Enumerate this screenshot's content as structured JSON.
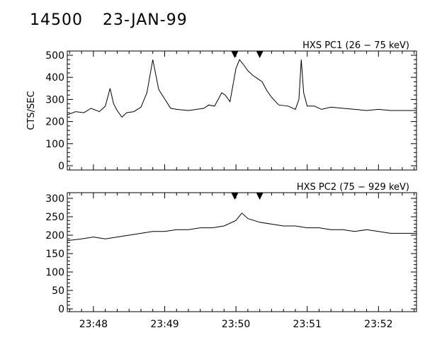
{
  "header": {
    "event_id": "14500",
    "date": "23-JAN-99"
  },
  "chart_data": [
    {
      "type": "line",
      "title": "HXS PC1 (26 − 75 keV)",
      "ylabel": "CTS/SEC",
      "ylim": [
        0,
        500
      ],
      "yticks": [
        0,
        100,
        200,
        300,
        400,
        500
      ],
      "xlim": [
        "23:47:38",
        "23:52:32"
      ],
      "xticks": [
        "23:48",
        "23:49",
        "23:50",
        "23:51",
        "23:52"
      ],
      "markers": [
        "23:49:59",
        "23:50:20"
      ],
      "series": [
        {
          "x": [
            "23:47:38",
            "23:47:45",
            "23:47:52",
            "23:47:58",
            "23:48:05",
            "23:48:10",
            "23:48:14",
            "23:48:17",
            "23:48:20",
            "23:48:24",
            "23:48:28",
            "23:48:34",
            "23:48:40",
            "23:48:45",
            "23:48:50",
            "23:48:55",
            "23:49:05",
            "23:49:10",
            "23:49:20",
            "23:49:27",
            "23:49:33",
            "23:49:37",
            "23:49:42",
            "23:49:45",
            "23:49:48",
            "23:49:51",
            "23:49:55",
            "23:50:00",
            "23:50:03",
            "23:50:06",
            "23:50:10",
            "23:50:14",
            "23:50:18",
            "23:50:22",
            "23:50:26",
            "23:50:30",
            "23:50:36",
            "23:50:44",
            "23:50:50",
            "23:50:53",
            "23:50:55",
            "23:50:57",
            "23:51:00",
            "23:51:06",
            "23:51:12",
            "23:51:20",
            "23:51:30",
            "23:51:40",
            "23:51:50",
            "23:52:00",
            "23:52:10",
            "23:52:20",
            "23:52:32"
          ],
          "values": [
            230,
            245,
            240,
            260,
            245,
            270,
            350,
            280,
            250,
            220,
            240,
            245,
            265,
            330,
            480,
            345,
            260,
            255,
            250,
            255,
            260,
            275,
            270,
            300,
            330,
            320,
            290,
            440,
            480,
            460,
            430,
            410,
            395,
            380,
            340,
            310,
            275,
            270,
            255,
            300,
            480,
            330,
            270,
            270,
            255,
            265,
            260,
            255,
            250,
            255,
            250,
            250,
            250
          ]
        }
      ]
    },
    {
      "type": "line",
      "title": "HXS PC2 (75 − 929 keV)",
      "ylim": [
        0,
        300
      ],
      "yticks": [
        0,
        50,
        100,
        150,
        200,
        250,
        300
      ],
      "xlim": [
        "23:47:38",
        "23:52:32"
      ],
      "xticks": [
        "23:48",
        "23:49",
        "23:50",
        "23:51",
        "23:52"
      ],
      "markers": [
        "23:49:59",
        "23:50:20"
      ],
      "series": [
        {
          "x": [
            "23:47:38",
            "23:47:50",
            "23:48:00",
            "23:48:10",
            "23:48:20",
            "23:48:30",
            "23:48:40",
            "23:48:50",
            "23:49:00",
            "23:49:10",
            "23:49:20",
            "23:49:30",
            "23:49:40",
            "23:49:50",
            "23:50:00",
            "23:50:05",
            "23:50:10",
            "23:50:20",
            "23:50:30",
            "23:50:40",
            "23:50:50",
            "23:51:00",
            "23:51:10",
            "23:51:20",
            "23:51:30",
            "23:51:40",
            "23:51:50",
            "23:52:00",
            "23:52:10",
            "23:52:20",
            "23:52:32"
          ],
          "values": [
            185,
            190,
            195,
            190,
            195,
            200,
            205,
            210,
            210,
            215,
            215,
            220,
            220,
            225,
            240,
            260,
            245,
            235,
            230,
            225,
            225,
            220,
            220,
            215,
            215,
            210,
            215,
            210,
            205,
            205,
            205
          ]
        }
      ]
    }
  ]
}
